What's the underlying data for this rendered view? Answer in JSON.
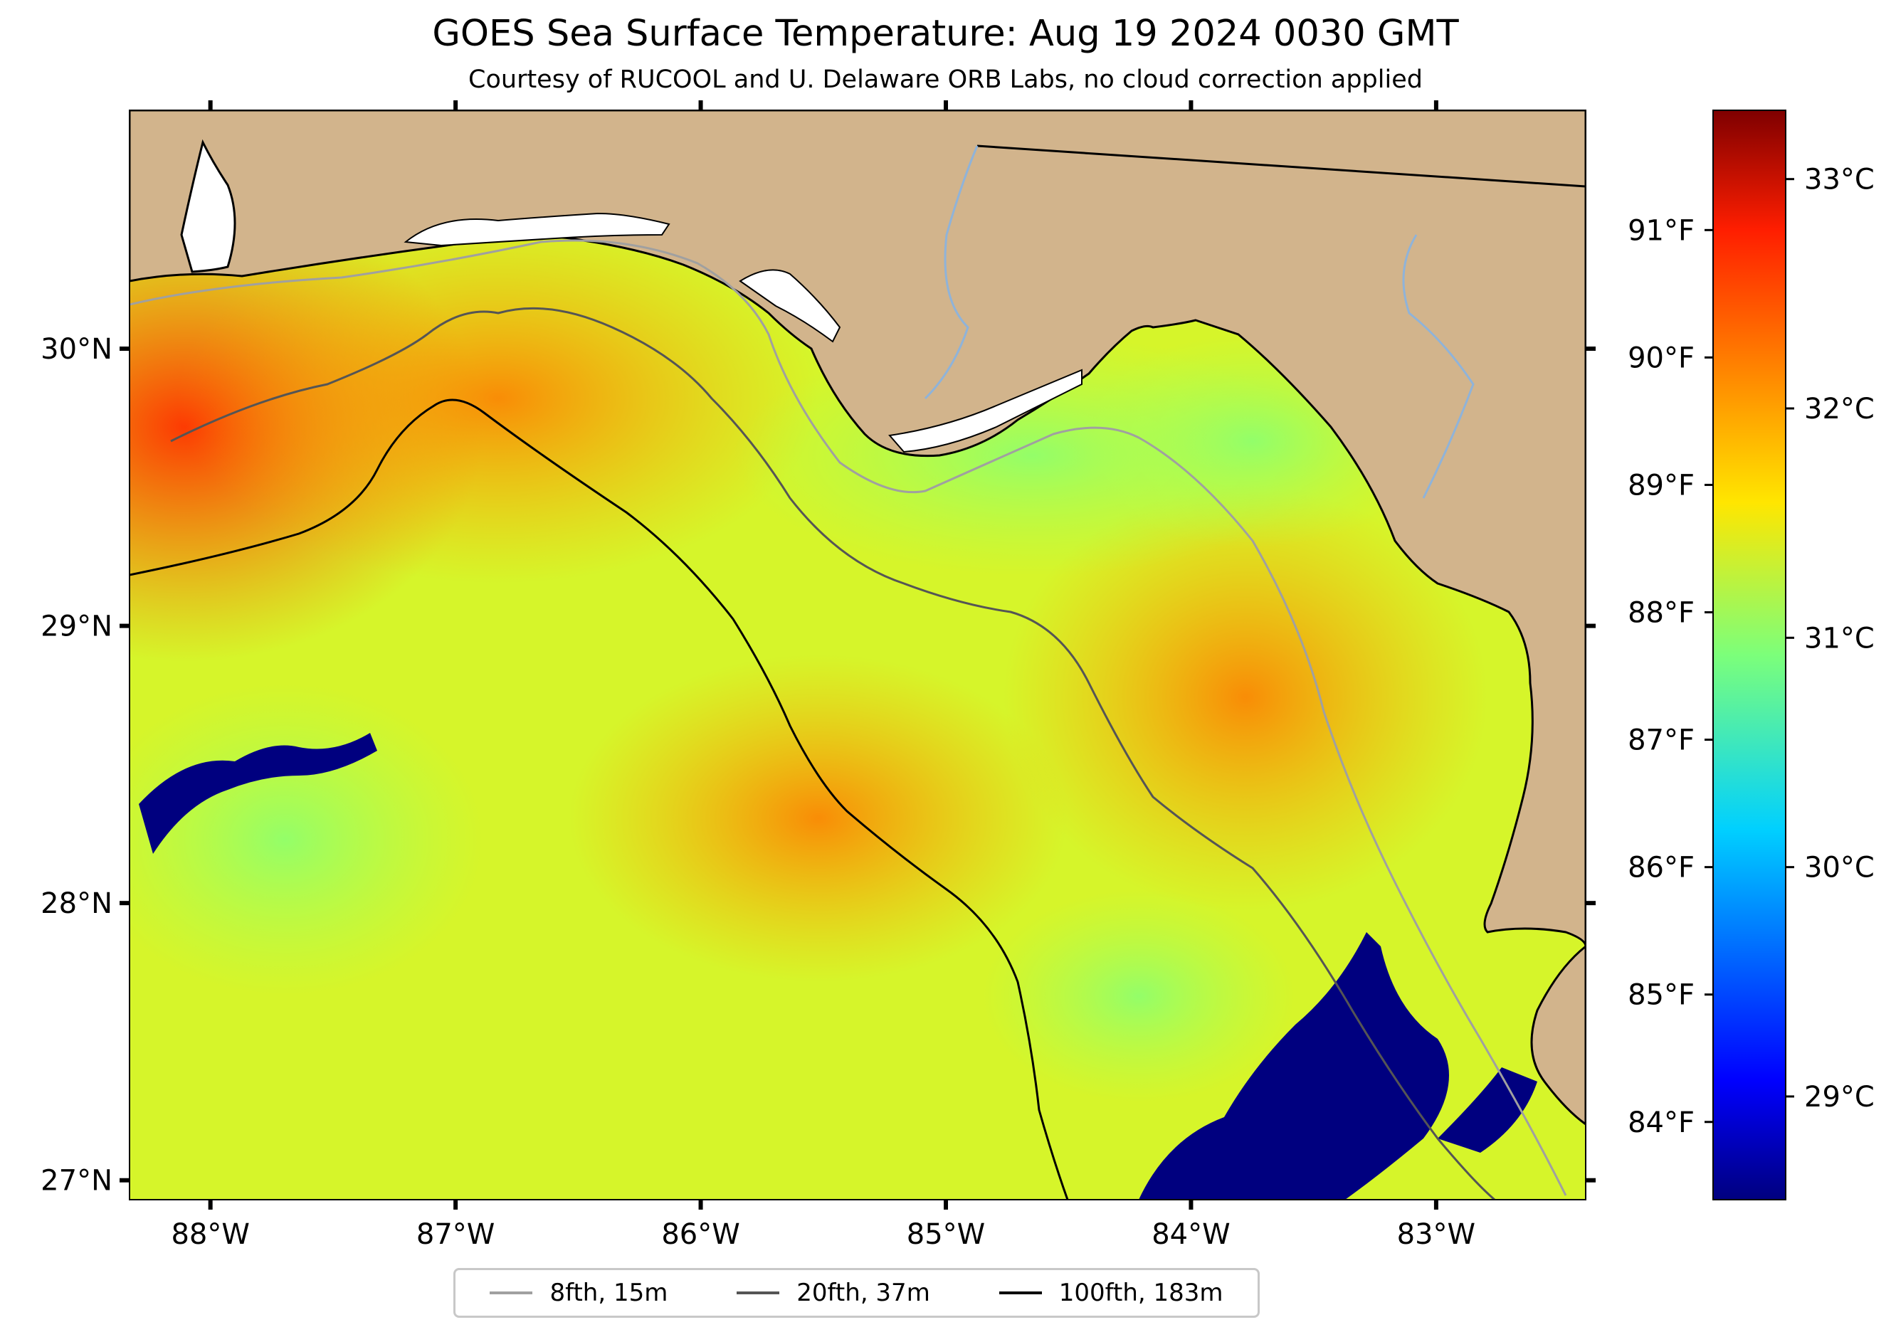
{
  "title": "GOES Sea Surface Temperature: Aug 19 2024 0030 GMT",
  "subtitle": "Courtesy of RUCOOL and U. Delaware ORB Labs, no cloud correction applied",
  "map": {
    "extent": {
      "lon_min": -88.33,
      "lon_max": -82.39,
      "lat_min": 26.93,
      "lat_max": 30.86
    },
    "land_color": "#d2b48c",
    "coast_color": "#000000"
  },
  "axes": {
    "lon_ticks": [
      {
        "value": -88,
        "label": "88°W"
      },
      {
        "value": -87,
        "label": "87°W"
      },
      {
        "value": -86,
        "label": "86°W"
      },
      {
        "value": -85,
        "label": "85°W"
      },
      {
        "value": -84,
        "label": "84°W"
      },
      {
        "value": -83,
        "label": "83°W"
      }
    ],
    "lat_ticks": [
      {
        "value": 30,
        "label": "30°N"
      },
      {
        "value": 29,
        "label": "29°N"
      },
      {
        "value": 28,
        "label": "28°N"
      },
      {
        "value": 27,
        "label": "27°N"
      }
    ]
  },
  "colorbar": {
    "colormap": "jet",
    "vmin_c": 28.55,
    "vmax_c": 33.3,
    "celsius_ticks": [
      {
        "value": 33,
        "label": "33°C"
      },
      {
        "value": 32,
        "label": "32°C"
      },
      {
        "value": 31,
        "label": "31°C"
      },
      {
        "value": 30,
        "label": "30°C"
      },
      {
        "value": 29,
        "label": "29°C"
      }
    ],
    "fahrenheit_ticks": [
      {
        "value": 91,
        "label": "91°F"
      },
      {
        "value": 90,
        "label": "90°F"
      },
      {
        "value": 89,
        "label": "89°F"
      },
      {
        "value": 88,
        "label": "88°F"
      },
      {
        "value": 87,
        "label": "87°F"
      },
      {
        "value": 86,
        "label": "86°F"
      },
      {
        "value": 85,
        "label": "85°F"
      },
      {
        "value": 84,
        "label": "84°F"
      }
    ]
  },
  "legend": {
    "items": [
      {
        "label": "8fth, 15m",
        "color": "#a0a0a0"
      },
      {
        "label": "20fth, 37m",
        "color": "#555555"
      },
      {
        "label": "100fth, 183m",
        "color": "#000000"
      }
    ]
  }
}
